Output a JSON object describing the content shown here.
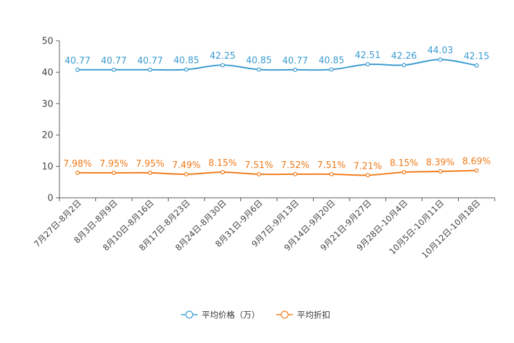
{
  "chart_data": {
    "type": "line",
    "categories": [
      "7月27日-8月2日",
      "8月3日-8月9日",
      "8月10日-8月16日",
      "8月17日-8月23日",
      "8月24日-8月30日",
      "8月31日-9月6日",
      "9月7日-9月13日",
      "9月14日-9月20日",
      "9月21日-9月27日",
      "9月28日-10月4日",
      "10月5日-10月11日",
      "10月12日-10月18日"
    ],
    "yticks": [
      0,
      10,
      20,
      30,
      40,
      50
    ],
    "ylim": [
      0,
      50
    ],
    "series": [
      {
        "name": "平均价格（万）",
        "color": "#3a9bd0",
        "values": [
          40.77,
          40.77,
          40.77,
          40.85,
          42.25,
          40.85,
          40.77,
          40.85,
          42.51,
          42.26,
          44.03,
          42.15
        ],
        "labels": [
          "40.77",
          "40.77",
          "40.77",
          "40.85",
          "42.25",
          "40.85",
          "40.77",
          "40.85",
          "42.51",
          "42.26",
          "44.03",
          "42.15"
        ]
      },
      {
        "name": "平均折扣",
        "color": "#f07a18",
        "values": [
          7.98,
          7.95,
          7.95,
          7.49,
          8.15,
          7.51,
          7.52,
          7.51,
          7.21,
          8.15,
          8.39,
          8.69
        ],
        "labels": [
          "7.98%",
          "7.95%",
          "7.95%",
          "7.49%",
          "8.15%",
          "7.51%",
          "7.52%",
          "7.51%",
          "7.21%",
          "8.15%",
          "8.39%",
          "8.69%"
        ]
      }
    ],
    "legend": "bottom-center",
    "grid": false
  }
}
